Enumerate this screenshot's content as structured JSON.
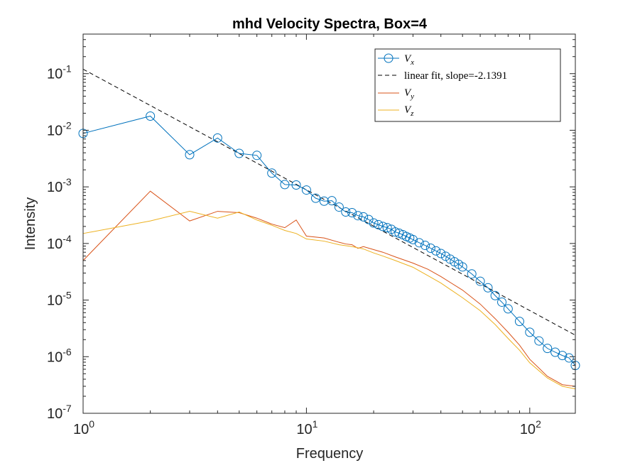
{
  "chart_data": {
    "type": "line",
    "title": "mhd Velocity Spectra, Box=4",
    "xlabel": "Frequency",
    "ylabel": "Intensity",
    "xscale": "log",
    "yscale": "log",
    "xlim": [
      1,
      160
    ],
    "ylim": [
      1e-07,
      0.5
    ],
    "legend_position": "top-right",
    "x_ticks": [
      {
        "value": 1,
        "base": "10",
        "exp": "0"
      },
      {
        "value": 10,
        "base": "10",
        "exp": "1"
      },
      {
        "value": 100,
        "base": "10",
        "exp": "2"
      }
    ],
    "y_ticks": [
      {
        "value": 1e-07,
        "base": "10",
        "exp": "-7"
      },
      {
        "value": 1e-06,
        "base": "10",
        "exp": "-6"
      },
      {
        "value": 1e-05,
        "base": "10",
        "exp": "-5"
      },
      {
        "value": 0.0001,
        "base": "10",
        "exp": "-4"
      },
      {
        "value": 0.001,
        "base": "10",
        "exp": "-3"
      },
      {
        "value": 0.01,
        "base": "10",
        "exp": "-2"
      },
      {
        "value": 0.1,
        "base": "10",
        "exp": "-1"
      }
    ],
    "series": [
      {
        "key": "vx",
        "name": "V_x",
        "legend_main": "V",
        "legend_sub": "x",
        "color": "#0072BD",
        "marker": "circle",
        "x": [
          1,
          2,
          3,
          4,
          5,
          6,
          7,
          8,
          9,
          10,
          11,
          12,
          13,
          14,
          15,
          16,
          17,
          18,
          19,
          20,
          21,
          22,
          23,
          24,
          25,
          26,
          27,
          28,
          29,
          30,
          32,
          34,
          36,
          38,
          40,
          42,
          44,
          46,
          48,
          50,
          55,
          60,
          65,
          70,
          75,
          80,
          90,
          100,
          110,
          120,
          130,
          140,
          150,
          160
        ],
        "values": [
          0.0088,
          0.0178,
          0.0037,
          0.0073,
          0.0039,
          0.0036,
          0.00175,
          0.0011,
          0.00108,
          0.00088,
          0.00063,
          0.00056,
          0.00057,
          0.00044,
          0.00036,
          0.00035,
          0.00031,
          0.000295,
          0.000265,
          0.00023,
          0.000215,
          0.0002,
          0.00019,
          0.000178,
          0.00016,
          0.000152,
          0.000143,
          0.000133,
          0.000125,
          0.000117,
          0.000103,
          9.25e-05,
          8.25e-05,
          7.4e-05,
          6.65e-05,
          5.95e-05,
          5.3e-05,
          4.75e-05,
          4.3e-05,
          3.85e-05,
          2.9e-05,
          2.15e-05,
          1.65e-05,
          1.2e-05,
          9.2e-06,
          7e-06,
          4.2e-06,
          2.7e-06,
          1.9e-06,
          1.4e-06,
          1.2e-06,
          1.05e-06,
          9.5e-07,
          7e-07
        ]
      },
      {
        "key": "fit",
        "name": "linear fit, slope=-2.1391",
        "legend_label": "linear fit, slope=-2.1391",
        "color": "#000000",
        "dashed": true,
        "slope": -2.1391,
        "x": [
          1,
          160
        ],
        "values": [
          0.12,
          2.4e-06
        ]
      },
      {
        "key": "vy",
        "name": "V_y",
        "legend_main": "V",
        "legend_sub": "y",
        "color": "#D95319",
        "x": [
          1,
          2,
          3,
          4,
          5,
          6,
          7,
          8,
          9,
          10,
          12,
          14,
          15,
          16,
          17,
          18,
          20,
          22,
          25,
          30,
          35,
          40,
          50,
          60,
          70,
          80,
          90,
          100,
          120,
          140,
          160
        ],
        "values": [
          5e-05,
          0.00084,
          0.00025,
          0.00037,
          0.00035,
          0.00028,
          0.00022,
          0.00019,
          0.00026,
          0.000135,
          0.000125,
          0.000105,
          9.8e-05,
          9.5e-05,
          8.2e-05,
          8.8e-05,
          7.8e-05,
          7e-05,
          5.8e-05,
          4.5e-05,
          3.5e-05,
          2.6e-05,
          1.5e-05,
          8.5e-06,
          4.7e-06,
          2.7e-06,
          1.6e-06,
          9e-07,
          4.5e-07,
          3.2e-07,
          3e-07
        ]
      },
      {
        "key": "vz",
        "name": "V_z",
        "legend_main": "V",
        "legend_sub": "z",
        "color": "#EDB120",
        "x": [
          1,
          2,
          3,
          4,
          5,
          6,
          7,
          8,
          9,
          10,
          12,
          14,
          16,
          18,
          20,
          22,
          25,
          30,
          35,
          40,
          50,
          60,
          70,
          80,
          90,
          100,
          120,
          140,
          160
        ],
        "values": [
          0.00015,
          0.00025,
          0.00037,
          0.00028,
          0.00036,
          0.00026,
          0.00021,
          0.00017,
          0.00015,
          0.00012,
          0.00011,
          9.5e-05,
          8.8e-05,
          8e-05,
          6.8e-05,
          6e-05,
          5e-05,
          3.8e-05,
          2.7e-05,
          2e-05,
          1.1e-05,
          6.5e-06,
          3.7e-06,
          2.1e-06,
          1.3e-06,
          7.8e-07,
          4.2e-07,
          3e-07,
          2.7e-07
        ]
      }
    ]
  }
}
